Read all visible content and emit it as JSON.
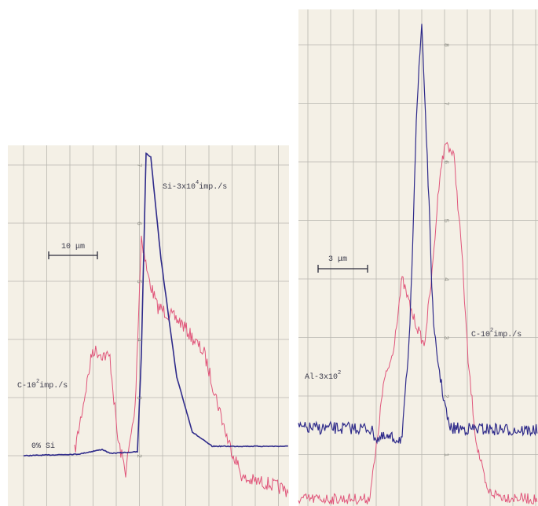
{
  "panels": [
    {
      "scale_bar": "10 μm",
      "labels": [
        {
          "text": "Si-3x10",
          "sup": "4",
          "suffix": "imp./s"
        },
        {
          "text": "C-10",
          "sup": "2",
          "suffix": "imp./s"
        },
        {
          "text": "0% Si"
        }
      ],
      "numbers": [
        "7",
        "6",
        "5",
        "4",
        "3",
        "2"
      ]
    },
    {
      "scale_bar": "3 μm",
      "labels": [
        {
          "text": "C-10",
          "sup": "2",
          "suffix": "imp./s"
        },
        {
          "text": "Al-3x10",
          "sup": "2"
        }
      ],
      "numbers": [
        "8",
        "7",
        "6",
        "5",
        "4",
        "3",
        "2",
        "1"
      ]
    }
  ]
}
